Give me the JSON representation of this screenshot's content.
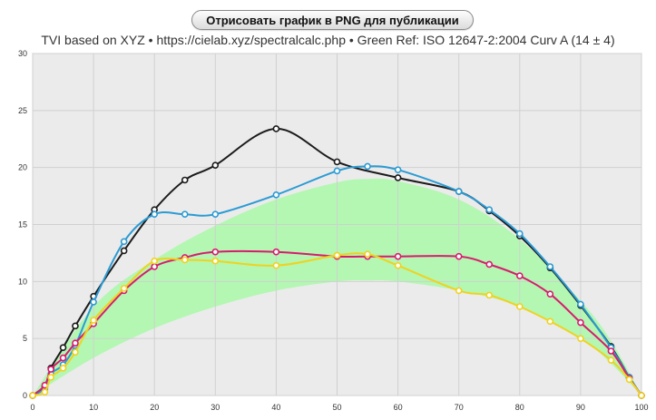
{
  "header": {
    "export_button_label": "Отрисовать график в PNG для публикации",
    "subtitle": "TVI based on XYZ  •  https://cielab.xyz/spectralcalc.php  •  Green Ref: ISO 12647-2:2004 Curv A (14 ± 4)"
  },
  "chart_data": {
    "type": "line",
    "title": "",
    "xlabel": "",
    "ylabel": "",
    "xlim": [
      0,
      100
    ],
    "ylim": [
      0,
      30
    ],
    "x_ticks": [
      0,
      10,
      20,
      30,
      40,
      50,
      60,
      70,
      80,
      90,
      100
    ],
    "y_ticks": [
      0,
      5,
      10,
      15,
      20,
      25,
      30
    ],
    "grid": true,
    "background": "#ebebeb",
    "reference_band": {
      "fill": "#b3f7b3",
      "x": [
        0,
        10,
        20,
        30,
        40,
        50,
        55,
        60,
        70,
        80,
        90,
        95,
        100
      ],
      "lower": [
        0,
        3.3,
        5.9,
        7.8,
        9.2,
        10.0,
        10.1,
        10.0,
        9.2,
        7.8,
        5.0,
        2.8,
        0
      ],
      "upper": [
        0,
        7.8,
        11.9,
        14.9,
        17.2,
        18.7,
        19.0,
        18.8,
        17.2,
        13.7,
        8.3,
        4.8,
        0
      ]
    },
    "series": [
      {
        "color": "#1b1b1b",
        "x": [
          0,
          2,
          3,
          5,
          7,
          10,
          15,
          20,
          25,
          30,
          40,
          50,
          60,
          70,
          75,
          80,
          85,
          90,
          95,
          98,
          100
        ],
        "y": [
          0,
          0.8,
          2.4,
          4.2,
          6.1,
          8.7,
          12.7,
          16.3,
          18.9,
          20.2,
          23.4,
          20.5,
          19.1,
          17.9,
          16.2,
          14.0,
          11.2,
          7.9,
          4.3,
          1.6,
          0
        ]
      },
      {
        "color": "#2b9bd3",
        "x": [
          0,
          2,
          3,
          5,
          7,
          10,
          15,
          20,
          25,
          30,
          40,
          50,
          55,
          60,
          70,
          75,
          80,
          85,
          90,
          95,
          98,
          100
        ],
        "y": [
          0,
          0.6,
          1.9,
          2.7,
          4.4,
          8.2,
          13.5,
          15.9,
          15.9,
          15.9,
          17.6,
          19.7,
          20.1,
          19.8,
          17.9,
          16.3,
          14.2,
          11.3,
          8.0,
          4.2,
          1.6,
          0
        ]
      },
      {
        "color": "#d81b6e",
        "x": [
          0,
          2,
          3,
          5,
          7,
          10,
          15,
          20,
          25,
          30,
          40,
          50,
          55,
          60,
          70,
          75,
          80,
          85,
          90,
          95,
          98,
          100
        ],
        "y": [
          0,
          0.9,
          2.3,
          3.3,
          4.6,
          6.3,
          9.2,
          11.3,
          12.1,
          12.6,
          12.6,
          12.2,
          12.2,
          12.2,
          12.2,
          11.5,
          10.5,
          8.9,
          6.4,
          3.9,
          1.5,
          0
        ]
      },
      {
        "color": "#f0d21e",
        "x": [
          0,
          2,
          3,
          5,
          7,
          10,
          15,
          20,
          25,
          30,
          40,
          50,
          55,
          60,
          70,
          75,
          80,
          85,
          90,
          95,
          98,
          100
        ],
        "y": [
          0,
          0.3,
          1.6,
          2.4,
          3.8,
          6.6,
          9.4,
          11.8,
          11.9,
          11.8,
          11.4,
          12.3,
          12.4,
          11.4,
          9.2,
          8.8,
          7.8,
          6.5,
          5.0,
          3.1,
          1.4,
          0
        ]
      }
    ]
  }
}
